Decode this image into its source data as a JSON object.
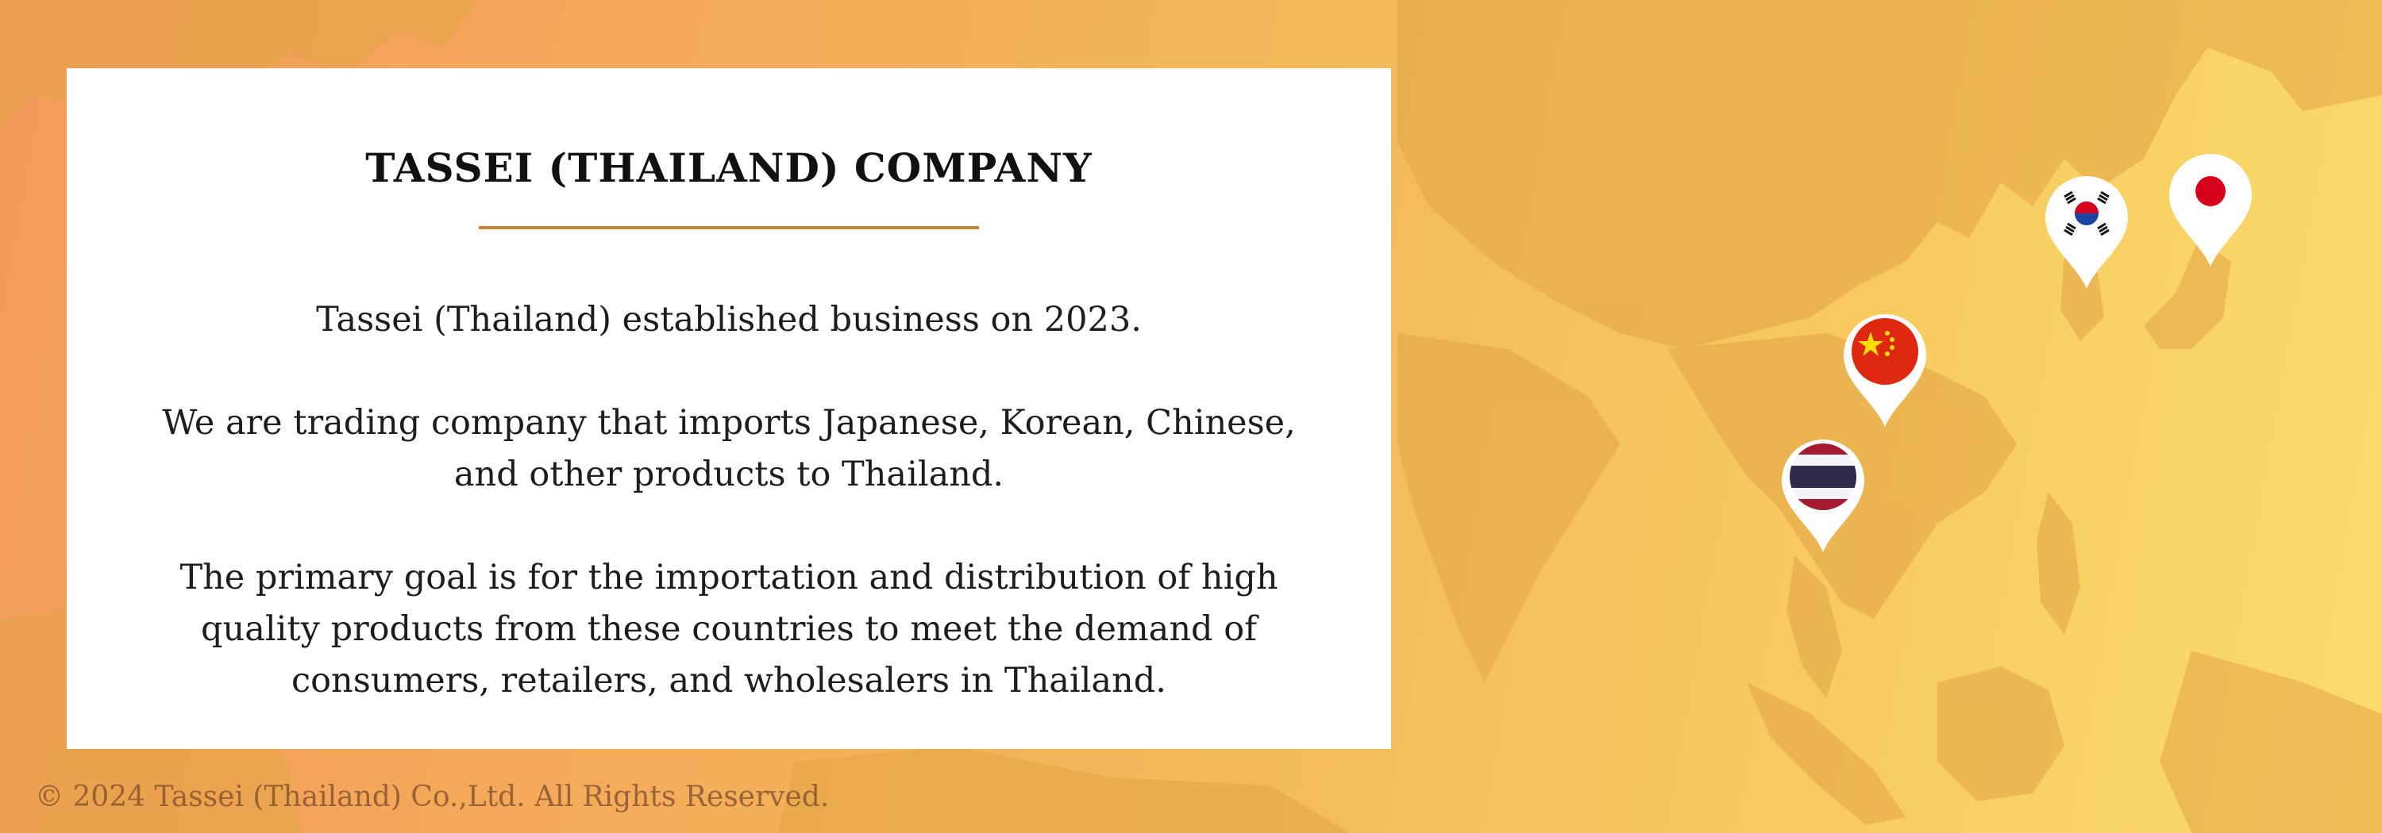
{
  "card": {
    "title": "TASSEI (THAILAND) COMPANY",
    "paragraphs": [
      "Tassei (Thailand) established business on 2023.",
      "We are trading company that imports Japanese, Korean, Chinese, and other products to Thailand.",
      "The primary goal is for the importation and distribution of high quality products from these countries to meet the demand of consumers, retailers, and wholesalers in Thailand."
    ]
  },
  "footer": {
    "copyright": "© 2024 Tassei (Thailand) Co.,Ltd. All Rights Reserved."
  },
  "map": {
    "pins": [
      {
        "country": "Japan",
        "icon": "japan-flag-icon"
      },
      {
        "country": "South Korea",
        "icon": "south-korea-flag-icon"
      },
      {
        "country": "China",
        "icon": "china-flag-icon"
      },
      {
        "country": "Thailand",
        "icon": "thailand-flag-icon"
      }
    ]
  },
  "colors": {
    "accent_rule": "#c8842e",
    "landmass": "#e3a446"
  }
}
